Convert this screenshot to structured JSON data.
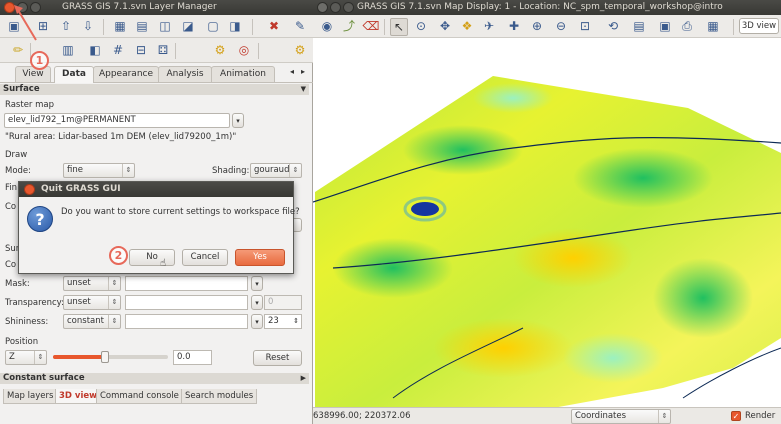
{
  "left_window": {
    "title": "GRASS GIS 7.1.svn Layer Manager",
    "tabs": [
      {
        "label": "View",
        "active": false
      },
      {
        "label": "Data",
        "active": true
      },
      {
        "label": "Appearance",
        "active": false
      },
      {
        "label": "Analysis",
        "active": false
      },
      {
        "label": "Animation",
        "active": false
      }
    ],
    "surface_header": "Surface",
    "raster_map_label": "Raster map",
    "raster_map_value": "elev_lid792_1m@PERMANENT",
    "raster_desc": "\"Rural area: Lidar-based 1m DEM (elev_lid79200_1m)\"",
    "draw_label": "Draw",
    "mode_label": "Mode:",
    "mode_value": "fine",
    "shading_label": "Shading:",
    "shading_value": "gouraud",
    "fine_label_partial": "Fin",
    "co_label_partial": "Co",
    "su_label_partial": "Sur",
    "col_label_partial": "Co",
    "mask_label": "Mask:",
    "mask_value": "unset",
    "transparency_label": "Transparency:",
    "transparency_value": "unset",
    "transparency_spin": "0",
    "shininess_label": "Shininess:",
    "shininess_value": "constant",
    "shininess_spin": "23",
    "position_label": "Position",
    "position_axis": "Z",
    "position_value": "0.0",
    "position_progress": 0.45,
    "reset_label": "Reset",
    "constant_surface_header": "Constant surface",
    "bottom_tabs": [
      {
        "label": "Map layers",
        "active": false
      },
      {
        "label": "3D view",
        "active": true
      },
      {
        "label": "Command console",
        "active": false
      },
      {
        "label": "Search modules",
        "active": false
      }
    ]
  },
  "dialog": {
    "title": "Quit GRASS GUI",
    "message": "Do you want to store current settings to workspace file?",
    "no_label": "No",
    "cancel_label": "Cancel",
    "yes_label": "Yes"
  },
  "right_window": {
    "title": "GRASS GIS 7.1.svn Map Display: 1  - Location: NC_spm_temporal_workshop@intro",
    "view_mode": "3D view",
    "coordinates": "638996.00; 220372.06",
    "coordinates_select": "Coordinates",
    "render_label": "Render",
    "render_checked": true
  },
  "annotations": {
    "step1": "1",
    "step2": "2"
  },
  "colors": {
    "accent": "#e8572d",
    "dialog_yes": "#e86a3e",
    "annotation": "#e7695a"
  }
}
